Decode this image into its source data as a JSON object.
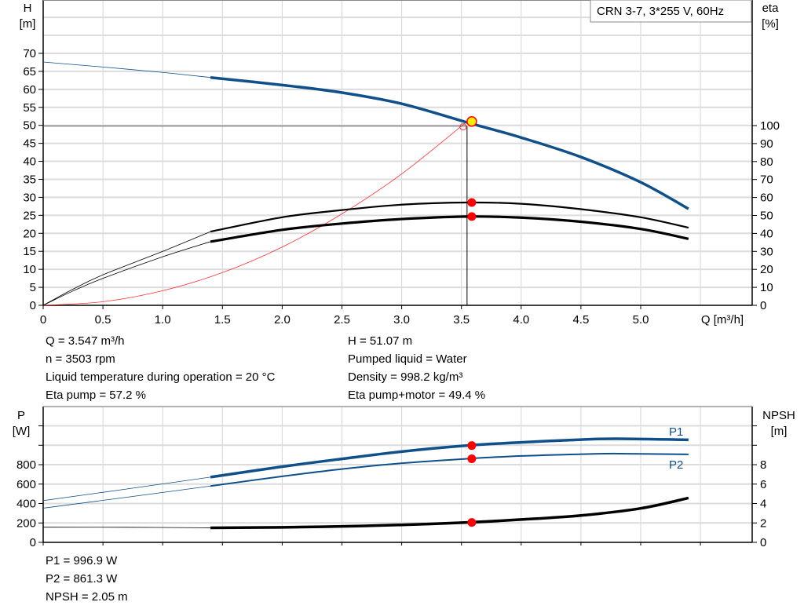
{
  "title_box": "CRN 3-7, 3*255 V, 60Hz",
  "colors": {
    "head": "#0f4f8a",
    "eta": "#000000",
    "system": "#ff3030",
    "power": "#0f4f8a",
    "npsh": "#000000",
    "point": "#ff0000",
    "duty_point": "#ffee00"
  },
  "info_top_left": [
    "Q = 3.547 m³/h",
    "n = 3503 rpm",
    "Liquid temperature during operation = 20 °C",
    "Eta pump = 57.2 %"
  ],
  "info_top_right": [
    "H = 51.07 m",
    "Pumped liquid = Water",
    "Density = 998.2 kg/m³",
    "Eta pump+motor = 49.4 %"
  ],
  "info_bottom": [
    "P1 = 996.9 W",
    "P2 = 861.3 W",
    "NPSH = 2.05 m"
  ],
  "chart_data": [
    {
      "type": "line",
      "xlabel": "Q [m³/h]",
      "ylabel": "H\n[m]",
      "y2label": "eta\n[%]",
      "xlim": [
        0,
        5.83
      ],
      "ylim": [
        0,
        80
      ],
      "y2lim": [
        0,
        174
      ],
      "grid": true,
      "xticks": [
        "0",
        "0.5",
        "1.0",
        "1.5",
        "2.0",
        "2.5",
        "3.0",
        "3.5",
        "4.0",
        "4.5",
        "5.0"
      ],
      "yticks": [
        "0",
        "5",
        "10",
        "15",
        "20",
        "25",
        "30",
        "35",
        "40",
        "45",
        "50",
        "55",
        "60",
        "65",
        "70"
      ],
      "y2ticks": [
        "0",
        "10",
        "20",
        "30",
        "40",
        "50",
        "60",
        "70",
        "80",
        "90",
        "100"
      ],
      "duty_point": {
        "Q": 3.547,
        "H": 51.07
      },
      "series": [
        {
          "key": "head",
          "axis": "left",
          "x": [
            0,
            0.5,
            1.0,
            1.4,
            2.0,
            2.5,
            3.0,
            3.55,
            4.0,
            4.5,
            5.0,
            5.4
          ],
          "y": [
            67.6,
            66.2,
            64.7,
            63.3,
            61.2,
            59.1,
            56.0,
            50.8,
            46.6,
            41.2,
            34.2,
            26.8
          ]
        },
        {
          "key": "eta_pump",
          "axis": "right",
          "x": [
            0,
            0.25,
            0.5,
            1.0,
            1.4,
            2.0,
            2.5,
            3.0,
            3.547,
            4.0,
            4.5,
            5.0,
            5.4
          ],
          "y": [
            0,
            9,
            17,
            30,
            41,
            49,
            53,
            56,
            57.2,
            56.5,
            53.5,
            49,
            43.2
          ]
        },
        {
          "key": "eta_pump_motor",
          "axis": "right",
          "x": [
            0,
            0.25,
            0.5,
            1.0,
            1.4,
            2.0,
            2.5,
            3.0,
            3.547,
            4.0,
            4.5,
            5.0,
            5.4
          ],
          "y": [
            0,
            8,
            15,
            27,
            35.4,
            42,
            45.5,
            48,
            49.4,
            48.8,
            46.5,
            42.5,
            37
          ]
        },
        {
          "key": "system",
          "axis": "left",
          "x": [
            0,
            0.5,
            1.0,
            1.5,
            2.0,
            2.5,
            3.0,
            3.547
          ],
          "y": [
            0,
            1.0,
            4.06,
            9.1,
            16.2,
            25.4,
            36.5,
            51.07
          ]
        }
      ]
    },
    {
      "type": "line",
      "ylabel": "P\n[W]",
      "y2label": "NPSH\n[m]",
      "xlim": [
        0,
        5.83
      ],
      "ylim": [
        0,
        1400
      ],
      "y2lim": [
        0,
        14
      ],
      "grid": true,
      "yticks": [
        "0",
        "200",
        "400",
        "600",
        "800"
      ],
      "y2ticks": [
        "0",
        "2",
        "4",
        "6",
        "8"
      ],
      "series": [
        {
          "key": "P1",
          "name": "P1",
          "x": [
            0,
            0.7,
            1.4,
            2.0,
            2.5,
            3.0,
            3.547,
            4.0,
            4.5,
            4.8,
            5.4
          ],
          "y": [
            430,
            550,
            672,
            780,
            860,
            935,
            997,
            1030,
            1058,
            1067,
            1056
          ]
        },
        {
          "key": "P2",
          "name": "P2",
          "x": [
            0,
            0.7,
            1.4,
            2.0,
            2.5,
            3.0,
            3.547,
            4.0,
            4.5,
            4.8,
            5.4
          ],
          "y": [
            352,
            465,
            580,
            680,
            755,
            815,
            861,
            890,
            908,
            914,
            906
          ]
        },
        {
          "key": "NPSH",
          "axis": "right",
          "x": [
            0,
            0.7,
            1.4,
            2.0,
            2.5,
            3.0,
            3.547,
            4.0,
            4.5,
            5.0,
            5.4
          ],
          "y": [
            1.56,
            1.55,
            1.5,
            1.55,
            1.65,
            1.8,
            2.05,
            2.35,
            2.77,
            3.5,
            4.57
          ]
        }
      ],
      "points": {
        "P1": 996.9,
        "P2": 861.3,
        "NPSH": 2.05
      }
    }
  ]
}
